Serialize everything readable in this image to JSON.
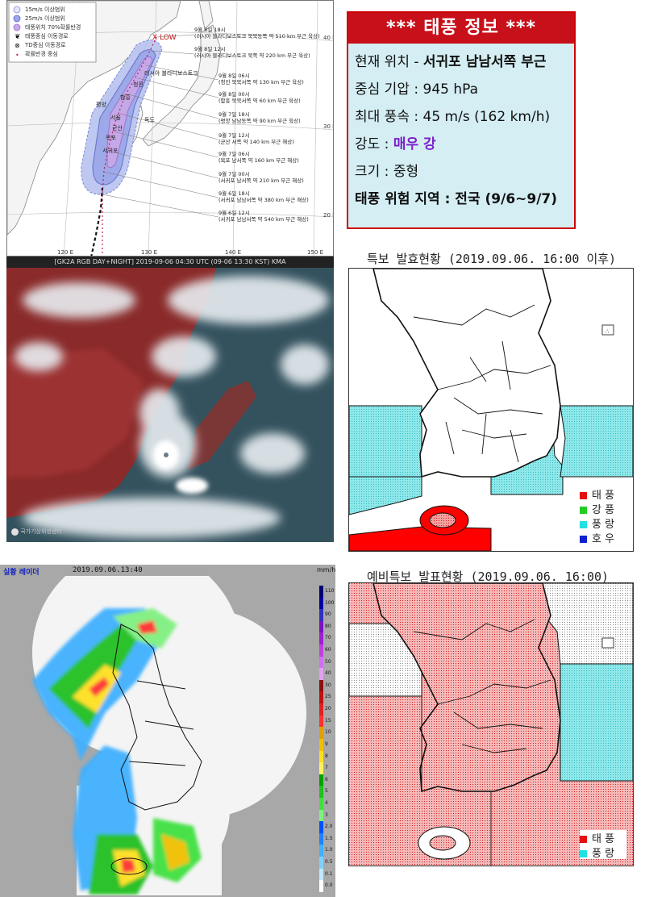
{
  "track_map": {
    "legend": [
      "15m/s 이상범위",
      "25m/s 이상범위",
      "태풍위치 70%확률반경",
      "태풍중심 이동경로",
      "TD중심 이동경로",
      "확률반경 중심"
    ],
    "low_label": "X LOW",
    "track_points": [
      {
        "label": "9월 8일 18시",
        "desc": "(러시아 블라디보스토크 북북동쪽 약 510 km 부근 육상)"
      },
      {
        "label": "9월 8일 12시",
        "desc": "(러시아 블라디보스토크 북쪽 약 220 km 부근 육상)"
      },
      {
        "label": "9월 8일 06시",
        "desc": "(청진 북북서쪽 약 130 km 부근 육상)"
      },
      {
        "label": "9월 8일 00시",
        "desc": "(함흥 북북서쪽 약 60 km 부근 육상)"
      },
      {
        "label": "9월 7일 18시",
        "desc": "(평양 남남동쪽 약 90 km 부근 육상)"
      },
      {
        "label": "9월 7일 12시",
        "desc": "(군산 서쪽 약 140 km 부근 해상)"
      },
      {
        "label": "9월 7일 06시",
        "desc": "(목포 남서쪽 약 160 km 부근 해상)"
      },
      {
        "label": "9월 7일 00시",
        "desc": "(서귀포 남서쪽 약 210 km 부근 해상)"
      },
      {
        "label": "9월 6일 18시",
        "desc": "(서귀포 남남서쪽 약 380 km 부근 해상)"
      },
      {
        "label": "9월 6일 12시",
        "desc": "(서귀포 남남서쪽 약 540 km 부근 해상)"
      }
    ],
    "city_labels": [
      "러시아 블라디보스토크",
      "청진",
      "함흥",
      "평양",
      "서울",
      "독도",
      "군산",
      "목포",
      "서귀포"
    ],
    "lat_labels": [
      "40 N",
      "30 N",
      "20 N"
    ],
    "lon_labels": [
      "120 E",
      "130 E",
      "140 E",
      "150 E"
    ]
  },
  "satellite": {
    "caption": "[GK2A RGB DAY+NIGHT] 2019-09-06 04:30 UTC (09-06 13:30 KST) KMA",
    "logo_text": "국가기상위성센터"
  },
  "info_box": {
    "title": "*** 태풍 정보 ***",
    "location_label": "현재 위치 - ",
    "location_value": "서귀포 남남서쪽 부근",
    "pressure": "중심 기압 : 945 hPa",
    "wind": "최대 풍속 : 45 m/s (162 km/h)",
    "intensity_label": "강도 : ",
    "intensity_value": "매우 강",
    "size": "크기 : 중형",
    "danger": "태풍 위험 지역 : 전국 (9/6~9/7)"
  },
  "warning_map": {
    "title": "특보 발효현황 (2019.09.06. 16:00 이후)",
    "legend": [
      {
        "label": "태 풍",
        "color": "#e41010"
      },
      {
        "label": "강 풍",
        "color": "#22cc22"
      },
      {
        "label": "풍 랑",
        "color": "#22e0e0"
      },
      {
        "label": "호 우",
        "color": "#1020d0"
      }
    ]
  },
  "radar": {
    "title": "실황 레이더",
    "timestamp": "2019.09.06.13:40",
    "unit": "mm/h",
    "scale": [
      "110",
      "100",
      "90",
      "80",
      "70",
      "60",
      "50",
      "40",
      "30",
      "25",
      "20",
      "15",
      "10",
      "9",
      "8",
      "7",
      "6",
      "5",
      "4",
      "3",
      "2.0",
      "1.5",
      "1.0",
      "0.5",
      "0.1",
      "0.0"
    ],
    "scale_colors": [
      "#000070",
      "#0000a0",
      "#3030c0",
      "#7a10c0",
      "#9c20d0",
      "#c040e0",
      "#d070f0",
      "#e0a0f0",
      "#8a1010",
      "#c01010",
      "#e02020",
      "#ff3030",
      "#e0a000",
      "#f0c000",
      "#ffe020",
      "#fff060",
      "#00a000",
      "#20c020",
      "#40e040",
      "#80f080",
      "#0050ff",
      "#2080ff",
      "#40b0ff",
      "#80d0ff",
      "#c0e8ff",
      "#ffffff"
    ]
  },
  "pre_warning_map": {
    "title": "예비특보 발표현황 (2019.09.06. 16:00)",
    "legend": [
      {
        "label": "태 풍",
        "color": "#e41010"
      },
      {
        "label": "풍 랑",
        "color": "#22e0e0"
      }
    ]
  }
}
